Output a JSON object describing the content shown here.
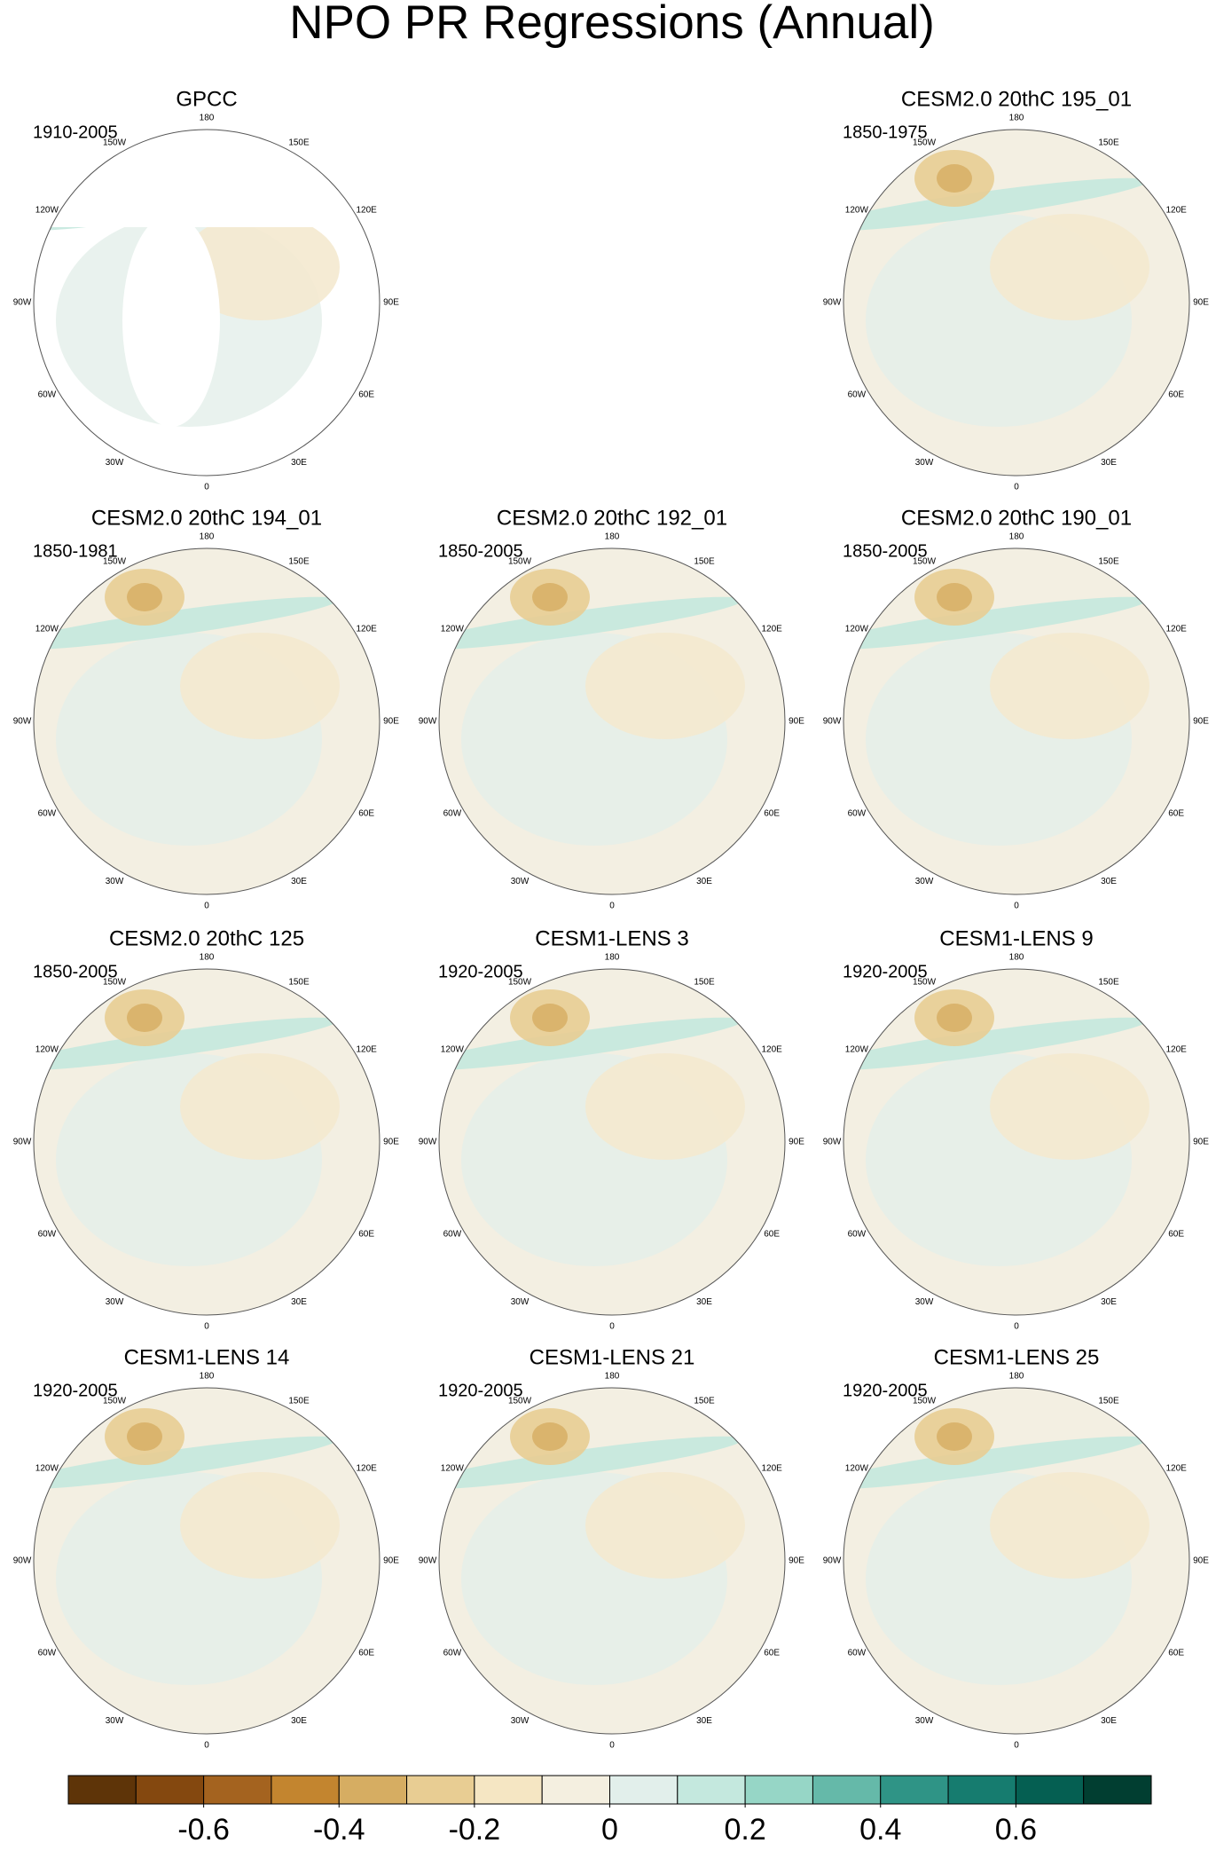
{
  "title": "NPO PR Regressions (Annual)",
  "longitudes": [
    "0",
    "30E",
    "60E",
    "90E",
    "120E",
    "150E",
    "180",
    "150W",
    "120W",
    "90W",
    "60W",
    "30W"
  ],
  "panels": [
    {
      "title": "GPCC",
      "period": "1910-2005"
    },
    {
      "title": "CESM2.0 20thC 195_01",
      "period": "1850-1975"
    },
    {
      "title": "CESM2.0 20thC 194_01",
      "period": "1850-1981"
    },
    {
      "title": "CESM2.0 20thC 192_01",
      "period": "1850-2005"
    },
    {
      "title": "CESM2.0 20thC 190_01",
      "period": "1850-2005"
    },
    {
      "title": "CESM2.0 20thC 125",
      "period": "1850-2005"
    },
    {
      "title": "CESM1-LENS 3",
      "period": "1920-2005"
    },
    {
      "title": "CESM1-LENS 9",
      "period": "1920-2005"
    },
    {
      "title": "CESM1-LENS 14",
      "period": "1920-2005"
    },
    {
      "title": "CESM1-LENS 21",
      "period": "1920-2005"
    },
    {
      "title": "CESM1-LENS 25",
      "period": "1920-2005"
    }
  ],
  "colorbar": {
    "lim": [
      -0.8,
      0.8
    ],
    "colors": [
      "#5e3408",
      "#84480f",
      "#a4631f",
      "#c3852f",
      "#d6ad62",
      "#e8cd93",
      "#f5e6c3",
      "#f4efe0",
      "#e2efeb",
      "#c4e8de",
      "#96d6c6",
      "#65b9a9",
      "#2f9486",
      "#167c6f",
      "#055f52",
      "#013e31"
    ],
    "ticks": [
      -0.6,
      -0.4,
      -0.2,
      0,
      0.2,
      0.4,
      0.6
    ]
  }
}
